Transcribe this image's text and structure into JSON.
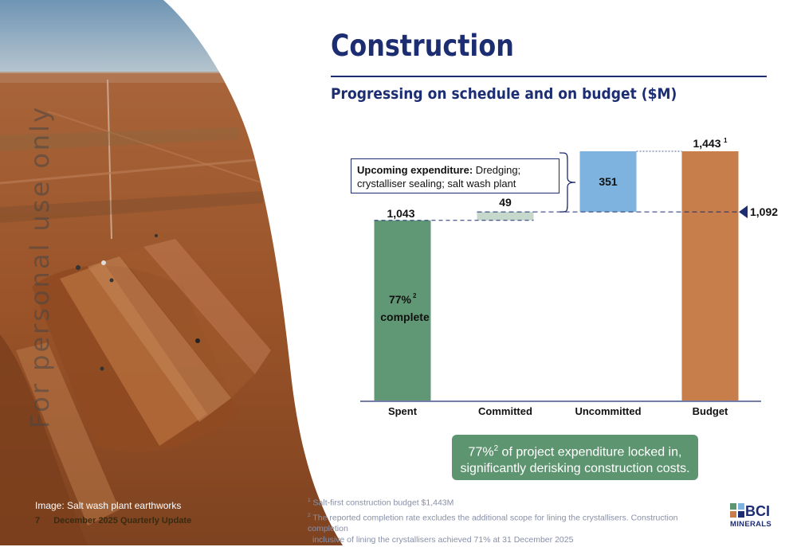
{
  "header": {
    "title": "Construction",
    "subtitle": "Progressing on schedule and on budget ($M)"
  },
  "photo": {
    "watermark": "For personal use only",
    "caption": "Image: Salt wash plant earthworks",
    "page_number": "7",
    "page_label": "December 2025 Quarterly Update"
  },
  "callout": {
    "bold": "Upcoming expenditure:",
    "text": " Dredging; crystalliser sealing; salt wash plant"
  },
  "highlight": {
    "line1_pre": "77%",
    "line1_sup": "2",
    "line1_post": " of project expenditure locked in,",
    "line2": "significantly derisking construction costs."
  },
  "footnotes": [
    {
      "num": "1",
      "text": "Salt-first construction budget $1,443M"
    },
    {
      "num": "2",
      "text": "The reported completion rate excludes the additional scope for lining the crystallisers. Construction completion",
      "text2": "inclusive of lining the crystallisers achieved 71% at 31 December 2025"
    }
  ],
  "logo": {
    "mark": "BCI",
    "text": "MINERALS"
  },
  "colors": {
    "navy": "#1d2d72",
    "spent": "#609774",
    "committed": "#c5d8cb",
    "uncommitted": "#7db3de",
    "budget": "#c77e4a",
    "highlight": "#5e9571"
  },
  "chart_data": {
    "type": "bar",
    "variant": "waterfall",
    "categories": [
      "Spent",
      "Committed",
      "Uncommitted",
      "Budget"
    ],
    "values": [
      1043,
      49,
      351,
      1443
    ],
    "bars": [
      {
        "category": "Spent",
        "base": 0,
        "value": 1043,
        "label": "1,043"
      },
      {
        "category": "Committed",
        "base": 1043,
        "value": 49,
        "label": "49"
      },
      {
        "category": "Uncommitted",
        "base": 1092,
        "value": 351,
        "label": "351"
      },
      {
        "category": "Budget",
        "base": 0,
        "value": 1443,
        "label": "1,443",
        "label_sup": "1"
      }
    ],
    "marker": {
      "value": 1092,
      "label": "1,092"
    },
    "inner_label": {
      "line1": "77%",
      "line1_sup": "2",
      "line2": "complete"
    },
    "ylim": [
      0,
      1443
    ]
  }
}
